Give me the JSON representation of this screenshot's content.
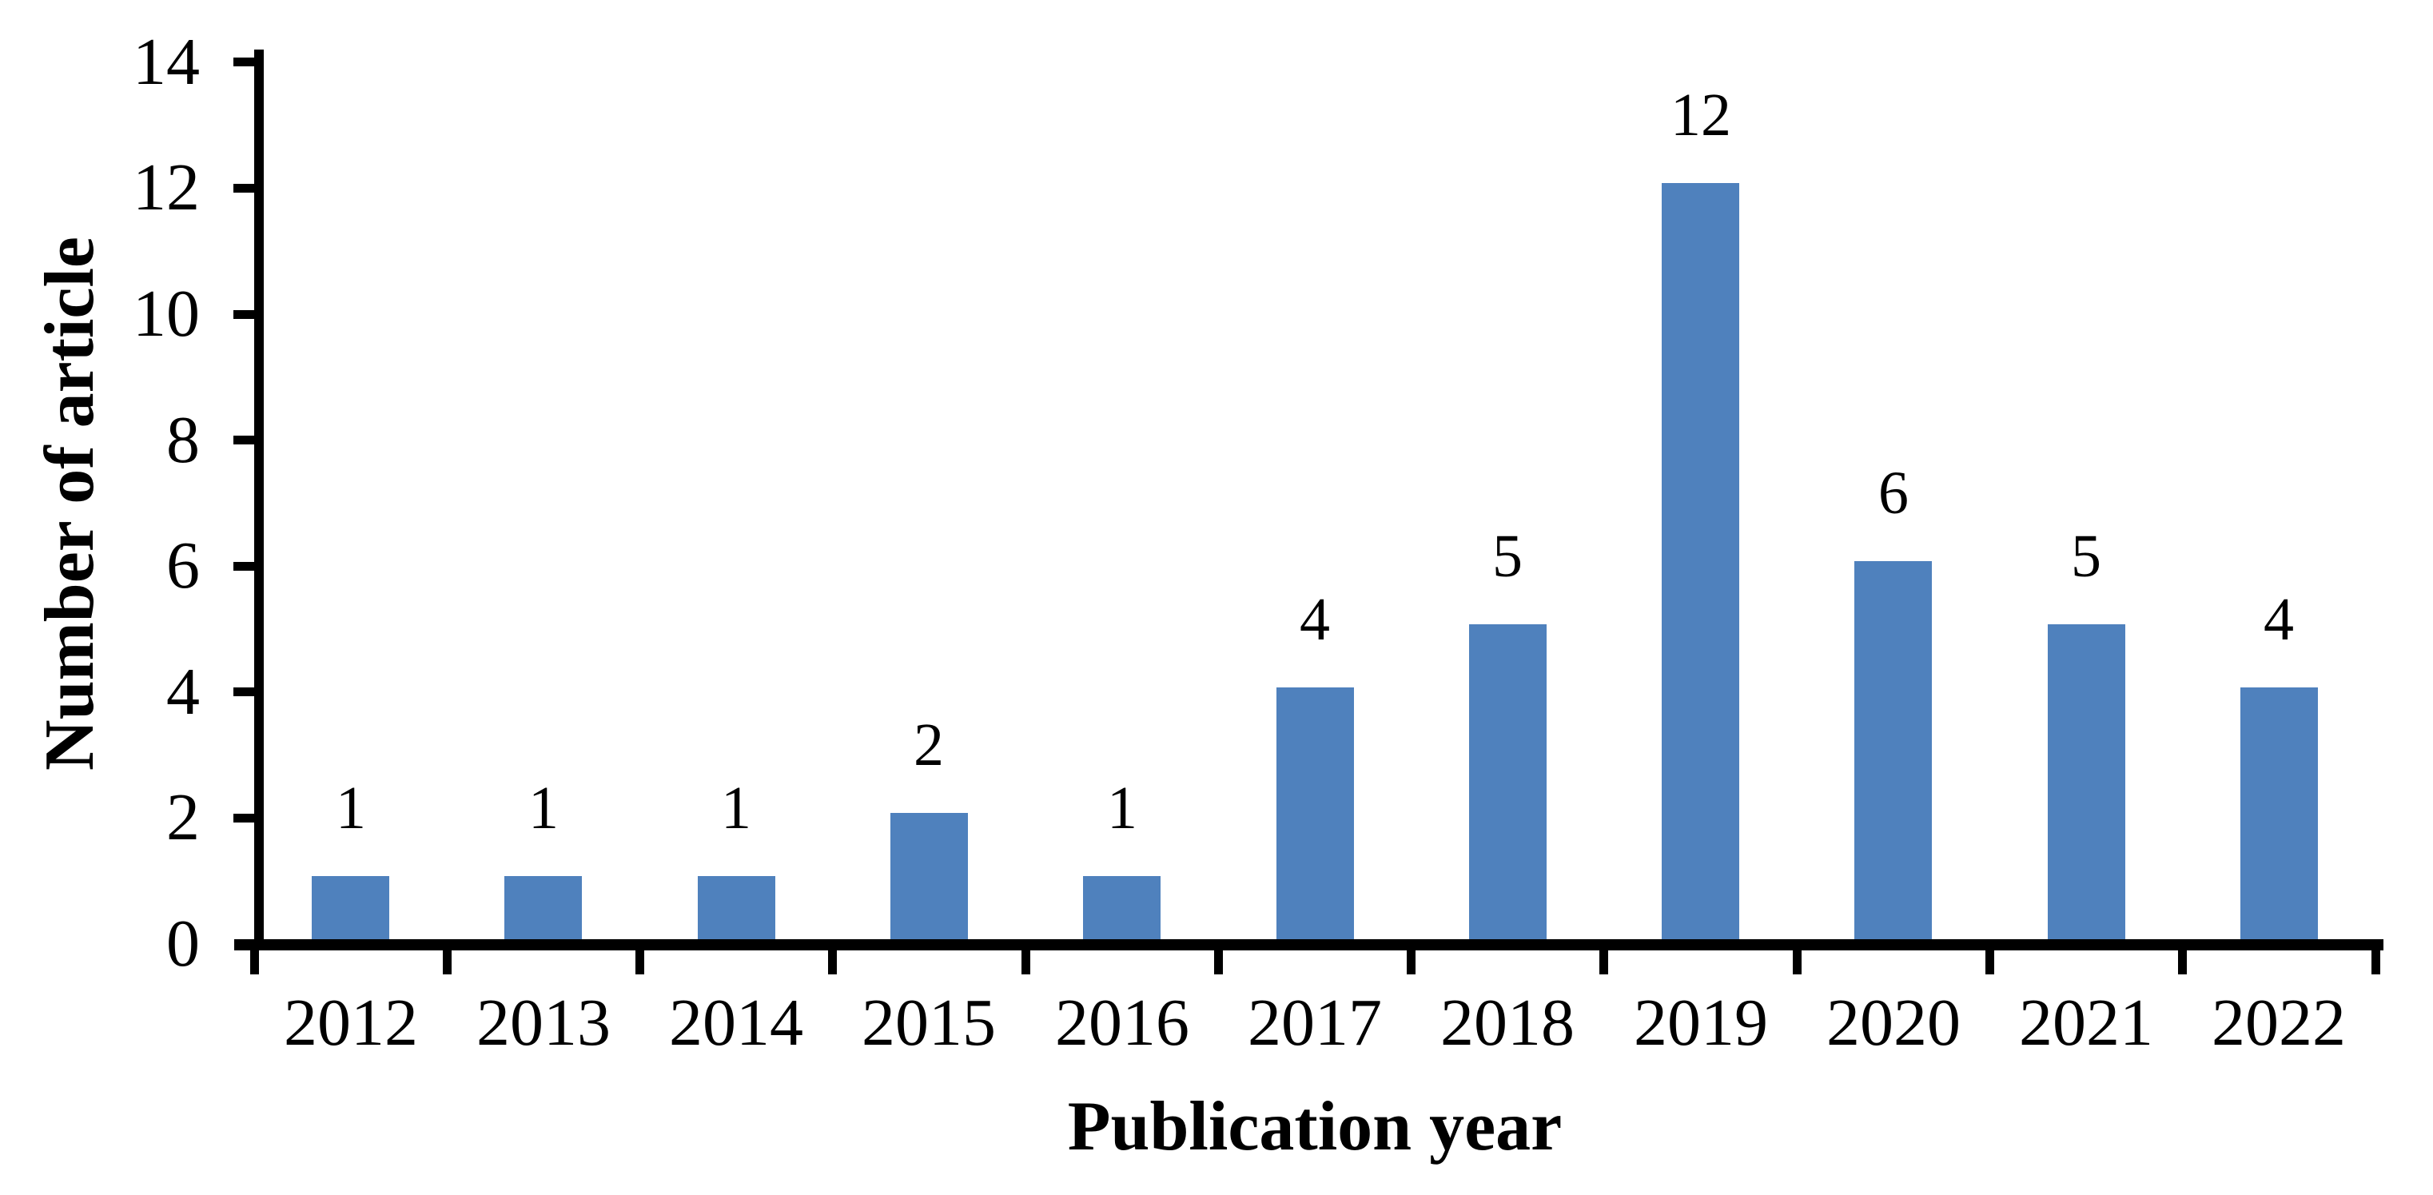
{
  "chart_data": {
    "type": "bar",
    "title": "",
    "categories": [
      "2012",
      "2013",
      "2014",
      "2015",
      "2016",
      "2017",
      "2018",
      "2019",
      "2020",
      "2021",
      "2022"
    ],
    "values": [
      1,
      1,
      1,
      2,
      1,
      4,
      5,
      12,
      6,
      5,
      4
    ],
    "xlabel": "Publication year",
    "ylabel": "Number of article",
    "yticks": [
      0,
      2,
      4,
      6,
      8,
      10,
      12,
      14
    ],
    "ylim": [
      0,
      14
    ],
    "bar_color": "#4F81BD",
    "axis_color": "#000000",
    "text_color": "#000000",
    "background_color": "#FFFFFF",
    "grid": false,
    "legend": "none",
    "data_labels": "outside-end"
  }
}
